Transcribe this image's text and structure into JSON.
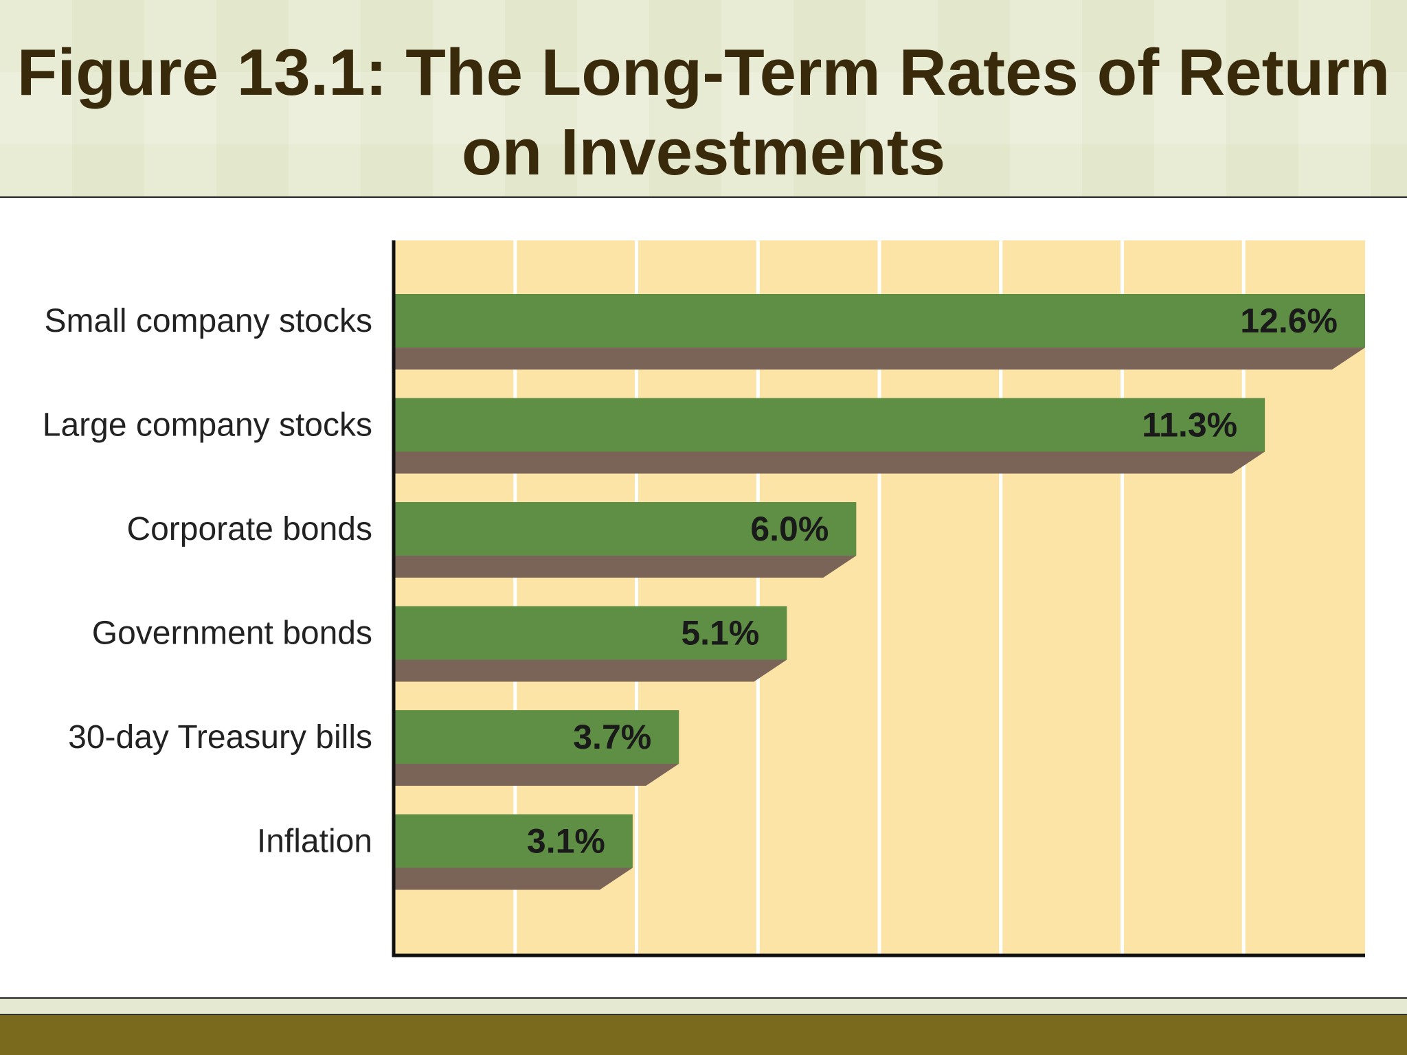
{
  "title": "Figure 13.1: The Long-Term Rates of Return on Investments",
  "chart_data": {
    "type": "bar",
    "orientation": "horizontal",
    "title": "Figure 13.1: The Long-Term Rates of Return on Investments",
    "categories": [
      "Small company stocks",
      "Large company stocks",
      "Corporate bonds",
      "Government bonds",
      "30-day Treasury bills",
      "Inflation"
    ],
    "values": [
      12.6,
      11.3,
      6.0,
      5.1,
      3.7,
      3.1
    ],
    "value_labels": [
      "12.6%",
      "11.3%",
      "6.0%",
      "5.1%",
      "3.7%",
      "3.1%"
    ],
    "xlabel": "",
    "ylabel": "",
    "xlim": [
      0,
      12.6
    ],
    "grid": true,
    "legend": "none",
    "colors": {
      "bar": "#5f8f44",
      "bar_shadow": "#7a6457",
      "plot_background": "#fce3a6",
      "gridline": "#ffffff",
      "axis": "#111111"
    }
  }
}
